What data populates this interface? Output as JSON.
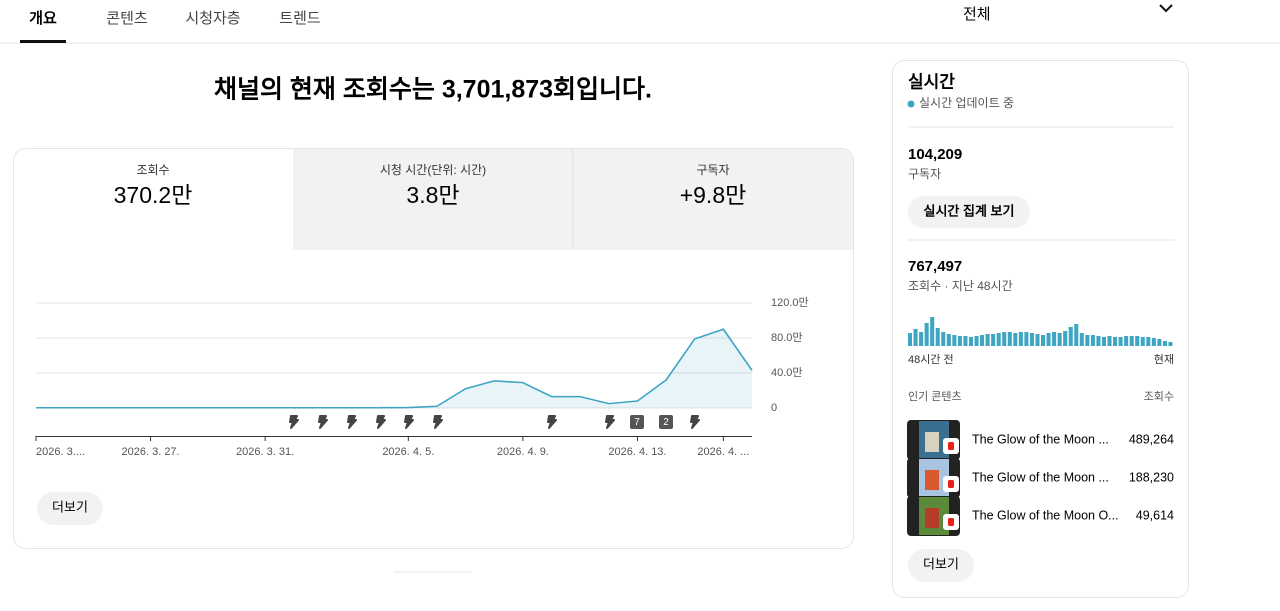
{
  "tabs": [
    "개요",
    "콘텐츠",
    "시청자층",
    "트렌드"
  ],
  "period": "전체",
  "headline": "채널의 현재 조회수는 3,701,873회입니다.",
  "metrics": [
    {
      "label": "조회수",
      "value": "370.2만"
    },
    {
      "label": "시청 시간(단위: 시간)",
      "value": "3.8만"
    },
    {
      "label": "구독자",
      "value": "+9.8만"
    }
  ],
  "chart": {
    "type": "line",
    "categories": [
      "2026. 3....",
      null,
      null,
      null,
      "2026. 3. 27.",
      null,
      null,
      null,
      "2026. 3. 31.",
      null,
      null,
      null,
      null,
      "2026. 4. 5.",
      null,
      null,
      null,
      "2026. 4. 9.",
      null,
      null,
      null,
      "2026. 4. 13.",
      null,
      null,
      "2026. 4. ...",
      null
    ],
    "values": [
      0.3,
      0.3,
      0.3,
      0.3,
      0.3,
      0.3,
      0.3,
      0.3,
      0.3,
      0.3,
      0.3,
      0.3,
      0.3,
      0.5,
      2,
      22,
      31,
      29,
      13,
      13,
      5,
      8,
      32,
      79,
      90,
      43
    ],
    "color": "#3ea6c3",
    "ylim": [
      0,
      120
    ],
    "yticks": [
      {
        "value": 0,
        "label": "0"
      },
      {
        "value": 40,
        "label": "40.0만"
      },
      {
        "value": 80,
        "label": "80.0만"
      },
      {
        "value": 120,
        "label": "120.0만"
      }
    ],
    "grid": true,
    "event_badges": [
      "7",
      "2"
    ]
  },
  "more_button": "더보기",
  "realtime": {
    "title": "실시간",
    "status": "실시간 업데이트 중",
    "subscribers": "104,209",
    "subscribers_label": "구독자",
    "realtime_button": "실시간 집계 보기",
    "views_48h": "767,497",
    "views_48h_label": "조회수 · 지난 48시간",
    "hourly": {
      "type": "bar",
      "color": "#3ea6c3",
      "values": [
        13,
        17,
        14,
        23,
        29,
        18,
        14,
        12,
        11,
        10,
        10,
        9,
        10,
        11,
        12,
        12,
        13,
        14,
        14,
        13,
        14,
        14,
        13,
        12,
        11,
        13,
        14,
        13,
        15,
        19,
        22,
        13,
        11,
        11,
        10,
        9,
        10,
        9,
        9,
        10,
        10,
        10,
        9,
        9,
        8,
        7,
        5,
        4
      ]
    },
    "start_label": "48시간 전",
    "end_label": "현재",
    "top_content_header": "인기 콘텐츠",
    "views_header": "조회수",
    "top_content": [
      {
        "title": "The Glow of the Moon ...",
        "views": "489,264"
      },
      {
        "title": "The Glow of the Moon ...",
        "views": "188,230"
      },
      {
        "title": "The Glow of the Moon O...",
        "views": "49,614"
      }
    ],
    "more_button": "더보기"
  }
}
